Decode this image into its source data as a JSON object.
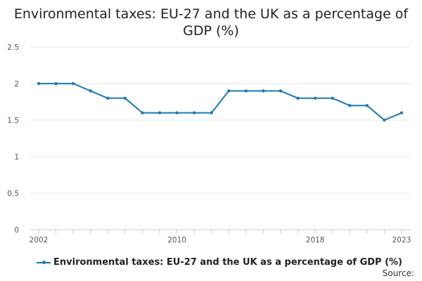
{
  "chart_data": {
    "type": "line",
    "title": "Environmental taxes: EU-27 and the UK as a percentage of GDP (%)",
    "xlabel": "",
    "ylabel": "",
    "x": [
      2002,
      2003,
      2004,
      2005,
      2006,
      2007,
      2008,
      2009,
      2010,
      2011,
      2012,
      2013,
      2014,
      2015,
      2016,
      2017,
      2018,
      2019,
      2020,
      2021,
      2022,
      2023
    ],
    "series": [
      {
        "name": "Environmental taxes: EU-27 and the UK as a percentage of GDP (%)",
        "color": "#1a7ab3",
        "values": [
          2.0,
          2.0,
          2.0,
          1.9,
          1.8,
          1.8,
          1.6,
          1.6,
          1.6,
          1.6,
          1.6,
          1.9,
          1.9,
          1.9,
          1.9,
          1.8,
          1.8,
          1.8,
          1.7,
          1.7,
          1.5,
          1.6
        ]
      }
    ],
    "ylim": [
      0,
      2.5
    ],
    "yticks": [
      "0",
      "0.5",
      "1",
      "1.5",
      "2",
      "2.5"
    ],
    "xtick_labels": [
      {
        "year": 2002,
        "label": "2002"
      },
      {
        "year": 2010,
        "label": "2010"
      },
      {
        "year": 2018,
        "label": "2018"
      },
      {
        "year": 2023,
        "label": "2023"
      }
    ],
    "grid": true,
    "legend": "bottom-left",
    "grid_color": "#e6e6e6",
    "axis_color": "#cccccc"
  },
  "footer": {
    "source_label": "Source:"
  }
}
